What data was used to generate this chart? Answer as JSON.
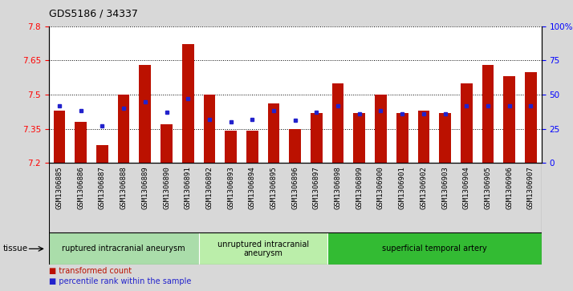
{
  "title": "GDS5186 / 34337",
  "samples": [
    "GSM1306885",
    "GSM1306886",
    "GSM1306887",
    "GSM1306888",
    "GSM1306889",
    "GSM1306890",
    "GSM1306891",
    "GSM1306892",
    "GSM1306893",
    "GSM1306894",
    "GSM1306895",
    "GSM1306896",
    "GSM1306897",
    "GSM1306898",
    "GSM1306899",
    "GSM1306900",
    "GSM1306901",
    "GSM1306902",
    "GSM1306903",
    "GSM1306904",
    "GSM1306905",
    "GSM1306906",
    "GSM1306907"
  ],
  "bar_values": [
    7.43,
    7.38,
    7.28,
    7.5,
    7.63,
    7.37,
    7.72,
    7.5,
    7.34,
    7.34,
    7.46,
    7.35,
    7.42,
    7.55,
    7.42,
    7.5,
    7.42,
    7.43,
    7.42,
    7.55,
    7.63,
    7.58,
    7.6
  ],
  "percentile_values": [
    42,
    38,
    27,
    40,
    45,
    37,
    47,
    32,
    30,
    32,
    38,
    31,
    37,
    42,
    36,
    38,
    36,
    36,
    36,
    42,
    42,
    42,
    42
  ],
  "ymin": 7.2,
  "ymax": 7.8,
  "yticks": [
    7.2,
    7.35,
    7.5,
    7.65,
    7.8
  ],
  "ytick_labels": [
    "7.2",
    "7.35",
    "7.5",
    "7.65",
    "7.8"
  ],
  "right_yticks": [
    0,
    25,
    50,
    75,
    100
  ],
  "right_ytick_labels": [
    "0",
    "25",
    "50",
    "75",
    "100%"
  ],
  "bar_color": "#bb1100",
  "marker_color": "#2222cc",
  "bar_width": 0.55,
  "background_color": "#d8d8d8",
  "plot_bg_color": "#ffffff",
  "xticklabel_bg": "#cccccc",
  "groups": [
    {
      "label": "ruptured intracranial aneurysm",
      "start": 0,
      "end": 7,
      "color": "#aaddaa"
    },
    {
      "label": "unruptured intracranial\naneurysm",
      "start": 7,
      "end": 13,
      "color": "#bbeeaa"
    },
    {
      "label": "superficial temporal artery",
      "start": 13,
      "end": 23,
      "color": "#33bb33"
    }
  ],
  "tissue_label": "tissue",
  "legend_items": [
    {
      "label": "transformed count",
      "color": "#bb1100"
    },
    {
      "label": "percentile rank within the sample",
      "color": "#2222cc"
    }
  ]
}
